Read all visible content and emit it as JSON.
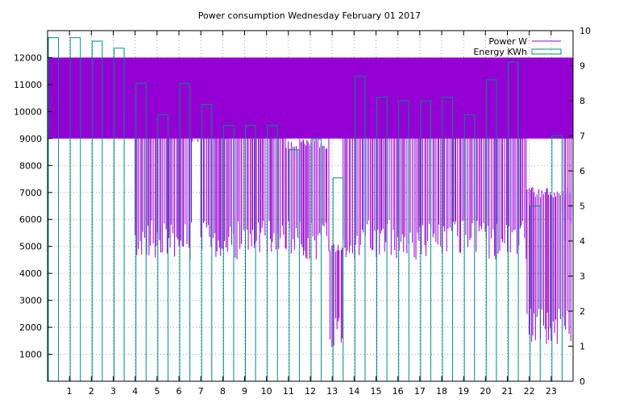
{
  "chart_data": {
    "type": "bar",
    "title": "Power consumption Wednesday February 01 2017",
    "x_ticks": [
      "1",
      "2",
      "3",
      "4",
      "5",
      "6",
      "7",
      "8",
      "9",
      "10",
      "11",
      "12",
      "13",
      "14",
      "15",
      "16",
      "17",
      "18",
      "19",
      "20",
      "21",
      "22",
      "23"
    ],
    "y_left_ticks": [
      "1000",
      "2000",
      "3000",
      "4000",
      "5000",
      "6000",
      "7000",
      "8000",
      "9000",
      "10000",
      "11000",
      "12000"
    ],
    "y_right_ticks": [
      "0",
      "1",
      "2",
      "3",
      "4",
      "5",
      "6",
      "7",
      "8",
      "9",
      "10"
    ],
    "xlim": [
      0,
      24
    ],
    "ylim_left": [
      0,
      13000
    ],
    "ylim_right": [
      0,
      10
    ],
    "grid": true,
    "legend_position": "top-right",
    "series": [
      {
        "name": "Power W",
        "axis": "left",
        "color": "#9400d3",
        "style": "line",
        "band_low": 9000,
        "band_high": 12000,
        "segments": [
          {
            "start": 0.0,
            "end": 4.0,
            "min": 9000,
            "max": 12000
          },
          {
            "start": 4.0,
            "end": 6.6,
            "min": 4500,
            "max": 12000
          },
          {
            "start": 6.6,
            "end": 7.0,
            "min": 8850,
            "max": 9000
          },
          {
            "start": 7.0,
            "end": 10.9,
            "min": 4500,
            "max": 12000
          },
          {
            "start": 10.9,
            "end": 12.9,
            "min": 4500,
            "max": 9000
          },
          {
            "start": 12.9,
            "end": 13.5,
            "min": 1200,
            "max": 5100
          },
          {
            "start": 13.5,
            "end": 21.9,
            "min": 4500,
            "max": 12000
          },
          {
            "start": 21.9,
            "end": 23.9,
            "min": 1300,
            "max": 7200
          },
          {
            "start": 23.5,
            "end": 24.0,
            "min": 5100,
            "max": 12000
          }
        ]
      },
      {
        "name": "Energy KWh",
        "axis": "right",
        "color": "#008b8b",
        "style": "bars",
        "x": [
          0,
          1,
          2,
          3,
          4,
          5,
          6,
          7,
          8,
          9,
          10,
          11,
          12,
          13,
          14,
          15,
          16,
          17,
          18,
          19,
          20,
          21,
          22,
          23
        ],
        "values": [
          9.8,
          9.8,
          9.7,
          9.5,
          8.5,
          7.6,
          8.5,
          7.9,
          7.3,
          7.3,
          7.3,
          6.6,
          6.9,
          5.8,
          8.7,
          8.1,
          8.0,
          8.0,
          8.1,
          7.6,
          8.6,
          9.1,
          5.0,
          7.0
        ]
      }
    ]
  }
}
